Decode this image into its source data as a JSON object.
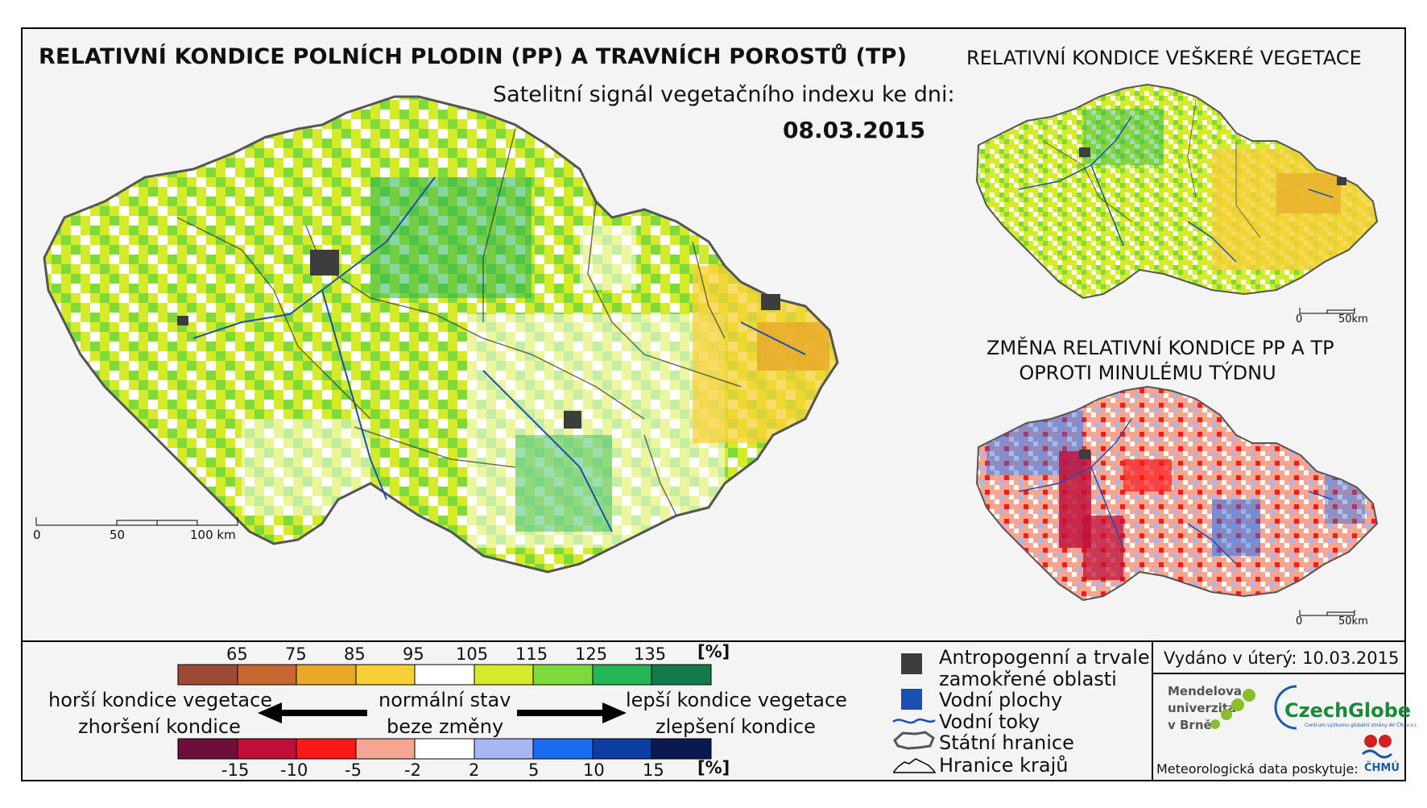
{
  "titles": {
    "main": "RELATIVNÍ KONDICE POLNÍCH PLODIN (PP) A TRAVNÍCH POROSTŮ (TP)",
    "right": "RELATIVNÍ KONDICE VEŠKERÉ VEGETACE",
    "satellite_label": "Satelitní signál vegetačního indexu ke dni:",
    "date": "08.03.2015",
    "change_line1": "ZMĚNA RELATIVNÍ KONDICE PP A TP",
    "change_line2": "OPROTI MINULÉMU TÝDNU"
  },
  "scalebars": {
    "main": [
      "0",
      "50",
      "100 km"
    ],
    "small_top": [
      "0",
      "50km"
    ],
    "small_bottom": [
      "0",
      "50km"
    ]
  },
  "legend_condition": {
    "numbers": [
      "65",
      "75",
      "85",
      "95",
      "105",
      "115",
      "125",
      "135"
    ],
    "unit": "[%]",
    "colors": [
      "#9c4a36",
      "#c8662f",
      "#e8a92a",
      "#f7d038",
      "#ffffff",
      "#d5eb2a",
      "#7dda3a",
      "#26b556",
      "#157a4a"
    ]
  },
  "legend_change": {
    "numbers": [
      "-15",
      "-10",
      "-5",
      "-2",
      "2",
      "5",
      "10",
      "15"
    ],
    "unit": "[%]",
    "colors": [
      "#6e0e3a",
      "#c0103a",
      "#ff1818",
      "#f5a590",
      "#ffffff",
      "#a8b6f2",
      "#1a6cf0",
      "#0a3ea0",
      "#0a1a50"
    ]
  },
  "legend_text": {
    "worse_condition": "horší kondice vegetace",
    "worsening": "zhoršení kondice",
    "normal_state": "normální stav",
    "no_change": "beze změny",
    "better_condition": "lepší kondice vegetace",
    "improvement": "zlepšení kondice"
  },
  "symbols": {
    "anthropogenic_line1": "Antropogenní a trvale",
    "anthropogenic_line2": "zamokřené oblasti",
    "water_bodies": "Vodní plochy",
    "rivers": "Vodní toky",
    "state_border": "Státní hranice",
    "region_border": "Hranice krajů"
  },
  "symbol_colors": {
    "anthropogenic": "#3d3d3d",
    "water_bodies": "#1a4fb5",
    "rivers": "#1a4fb5"
  },
  "info": {
    "issued": "Vydáno v úterý: 10.03.2015",
    "mendel": "Mendelova univerzita v Brně",
    "czech_globe": "CzechGlobe",
    "czech_globe_sub": "Centrum výzkumu globální změny AV ČR, v.v.i.",
    "meteo": "Meteorologická data poskytuje:",
    "chmu": "ČHMÚ"
  }
}
